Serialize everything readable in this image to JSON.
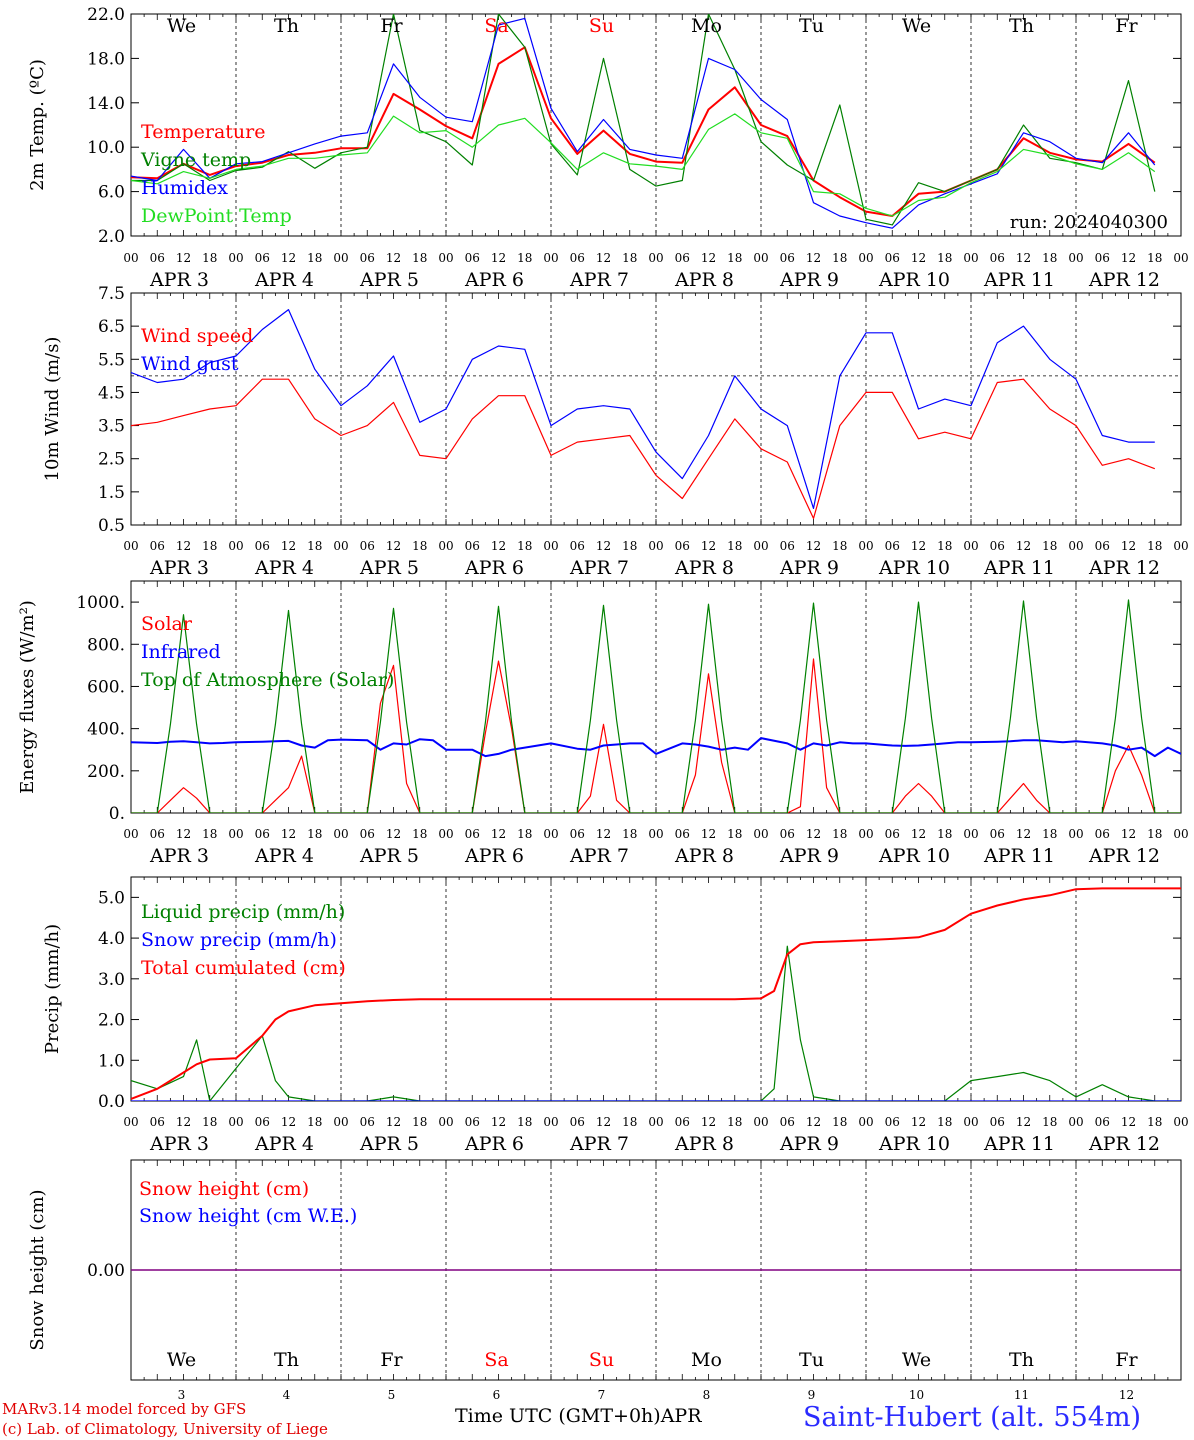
{
  "colors": {
    "red": "#ff0000",
    "dark_green": "#008000",
    "blue": "#0000ff",
    "light_green": "#22dd22",
    "purple": "#800080",
    "weekend": "#ff0000",
    "station": "#2b2bff"
  },
  "time_axis": {
    "tick_hours": [
      "00",
      "06",
      "12",
      "18"
    ],
    "dates": [
      "APR  3",
      "APR  4",
      "APR  5",
      "APR  6",
      "APR  7",
      "APR  8",
      "APR  9",
      "APR 10",
      "APR 11",
      "APR 12"
    ],
    "weekdays": [
      "We",
      "Th",
      "Fr",
      "Sa",
      "Su",
      "Mo",
      "Tu",
      "We",
      "Th",
      "Fr"
    ],
    "weekend_index": [
      3,
      4
    ],
    "day_numbers": [
      "3",
      "4",
      "5",
      "6",
      "7",
      "8",
      "9",
      "10",
      "11",
      "12"
    ],
    "xlabel": "Time UTC (GMT+0h)",
    "month": "APR"
  },
  "footer": {
    "credit1": "MARv3.14 model forced by GFS",
    "credit2": "(c) Lab. of Climatology, University of Liege",
    "station": "Saint-Hubert (alt. 554m)"
  },
  "chart_data": [
    {
      "type": "line",
      "ylabel": "2m Temp. (ºC)",
      "ylim": [
        2.0,
        22.0
      ],
      "yticks": [
        "2.0",
        "6.0",
        "10.0",
        "14.0",
        "18.0",
        "22.0"
      ],
      "annotation": "run: 2024040300",
      "x_hours": [
        0,
        6,
        12,
        18,
        24,
        30,
        36,
        42,
        48,
        54,
        60,
        66,
        72,
        78,
        84,
        90,
        96,
        102,
        108,
        114,
        120,
        126,
        132,
        138,
        144,
        150,
        156,
        162,
        168,
        174,
        180,
        186,
        192,
        198,
        204,
        210,
        216,
        222,
        228,
        234
      ],
      "series": [
        {
          "name": "Temperature",
          "color": "#ff0000",
          "values": [
            7.3,
            7.2,
            8.5,
            7.5,
            8.3,
            8.6,
            9.3,
            9.5,
            9.9,
            9.9,
            14.8,
            13.4,
            11.9,
            10.8,
            17.5,
            19.0,
            12.6,
            9.4,
            11.5,
            9.4,
            8.7,
            8.6,
            13.4,
            15.4,
            12.0,
            11.0,
            7.0,
            5.5,
            4.2,
            3.8,
            5.8,
            6.0,
            7.0,
            8.0,
            10.8,
            9.5,
            8.9,
            8.7,
            10.3,
            8.6
          ]
        },
        {
          "name": "Vigne temp",
          "color": "#008000",
          "values": [
            7.0,
            7.0,
            8.5,
            7.0,
            7.9,
            8.2,
            9.6,
            8.1,
            9.5,
            10.0,
            22.0,
            11.5,
            10.5,
            8.4,
            22.0,
            19.0,
            10.3,
            7.5,
            18.0,
            8.0,
            6.5,
            7.0,
            22.0,
            17.0,
            10.5,
            8.4,
            7.0,
            13.8,
            3.5,
            3.0,
            6.8,
            6.0,
            7.0,
            8.0,
            12.0,
            9.0,
            8.6,
            8.0,
            16.0,
            6.0
          ]
        },
        {
          "name": "Humidex",
          "color": "#0000ff",
          "values": [
            7.4,
            7.0,
            9.8,
            7.2,
            8.5,
            8.7,
            9.5,
            10.3,
            11.0,
            11.3,
            17.5,
            14.5,
            12.7,
            12.3,
            21.0,
            21.6,
            13.5,
            9.6,
            12.5,
            9.8,
            9.3,
            9.0,
            18.0,
            17.0,
            14.3,
            12.5,
            5.0,
            3.8,
            3.2,
            2.7,
            4.8,
            5.8,
            6.7,
            7.6,
            11.3,
            10.5,
            9.0,
            8.6,
            11.3,
            8.4
          ]
        },
        {
          "name": "DewPoint Temp",
          "color": "#22dd22",
          "values": [
            7.0,
            6.7,
            7.8,
            7.2,
            8.0,
            8.3,
            9.0,
            9.0,
            9.3,
            9.5,
            12.8,
            11.3,
            11.5,
            10.0,
            12.0,
            12.6,
            10.4,
            8.0,
            9.5,
            8.5,
            8.3,
            8.0,
            11.6,
            13.0,
            11.3,
            10.8,
            6.0,
            5.8,
            4.5,
            3.8,
            5.2,
            5.5,
            6.8,
            7.8,
            9.8,
            9.3,
            8.5,
            8.0,
            9.5,
            7.8
          ]
        }
      ]
    },
    {
      "type": "line",
      "ylabel": "10m Wind (m/s)",
      "ylim": [
        0.5,
        7.5
      ],
      "yticks": [
        "0.5",
        "1.5",
        "2.5",
        "3.5",
        "4.5",
        "5.5",
        "6.5",
        "7.5"
      ],
      "reference_line": 5.0,
      "x_hours": [
        0,
        6,
        12,
        18,
        24,
        30,
        36,
        42,
        48,
        54,
        60,
        66,
        72,
        78,
        84,
        90,
        96,
        102,
        108,
        114,
        120,
        126,
        132,
        138,
        144,
        150,
        156,
        162,
        168,
        174,
        180,
        186,
        192,
        198,
        204,
        210,
        216,
        222,
        228,
        234
      ],
      "series": [
        {
          "name": "Wind speed",
          "color": "#ff0000",
          "values": [
            3.5,
            3.6,
            3.8,
            4.0,
            4.1,
            4.9,
            4.9,
            3.7,
            3.2,
            3.5,
            4.2,
            2.6,
            2.5,
            3.7,
            4.4,
            4.4,
            2.6,
            3.0,
            3.1,
            3.2,
            2.0,
            1.3,
            2.5,
            3.7,
            2.8,
            2.4,
            0.7,
            3.5,
            4.5,
            4.5,
            3.1,
            3.3,
            3.1,
            4.8,
            4.9,
            4.0,
            3.5,
            2.3,
            2.5,
            2.2
          ]
        },
        {
          "name": "Wind gust",
          "color": "#0000ff",
          "values": [
            5.1,
            4.8,
            4.9,
            5.4,
            5.6,
            6.4,
            7.0,
            5.2,
            4.1,
            4.7,
            5.6,
            3.6,
            4.0,
            5.5,
            5.9,
            5.8,
            3.5,
            4.0,
            4.1,
            4.0,
            2.7,
            1.9,
            3.2,
            5.0,
            4.0,
            3.5,
            1.0,
            5.0,
            6.3,
            6.3,
            4.0,
            4.3,
            4.1,
            6.0,
            6.5,
            5.5,
            4.9,
            3.2,
            3.0,
            3.0
          ]
        }
      ]
    },
    {
      "type": "line",
      "ylabel": "Energy fluxes (W/m²)",
      "ylim": [
        0,
        1100
      ],
      "yticks": [
        "0.",
        "200.",
        "400.",
        "600.",
        "800.",
        "1000."
      ],
      "x_hours": [
        0,
        6,
        9,
        12,
        15,
        18,
        21,
        24,
        30,
        33,
        36,
        39,
        42,
        45,
        48,
        54,
        57,
        60,
        63,
        66,
        69,
        72,
        78,
        81,
        84,
        87,
        90,
        93,
        96,
        102,
        105,
        108,
        111,
        114,
        117,
        120,
        126,
        129,
        132,
        135,
        138,
        141,
        144,
        150,
        153,
        156,
        159,
        162,
        165,
        168,
        174,
        177,
        180,
        183,
        186,
        189,
        192,
        198,
        201,
        204,
        207,
        210,
        213,
        216,
        222,
        225,
        228,
        231,
        234,
        237,
        240
      ],
      "series": [
        {
          "name": "Solar",
          "color": "#ff0000",
          "values": [
            0,
            0,
            60,
            120,
            70,
            0,
            0,
            0,
            0,
            60,
            120,
            270,
            0,
            0,
            0,
            0,
            520,
            700,
            140,
            0,
            0,
            0,
            0,
            380,
            720,
            400,
            0,
            0,
            0,
            0,
            80,
            420,
            60,
            0,
            0,
            0,
            0,
            180,
            660,
            240,
            0,
            0,
            0,
            0,
            30,
            730,
            120,
            0,
            0,
            0,
            0,
            80,
            140,
            80,
            0,
            0,
            0,
            0,
            70,
            140,
            60,
            0,
            0,
            0,
            0,
            200,
            320,
            180,
            0,
            0,
            0
          ]
        },
        {
          "name": "Infrared",
          "color": "#0000ff",
          "values": [
            335,
            332,
            338,
            340,
            335,
            330,
            332,
            335,
            338,
            340,
            342,
            320,
            310,
            345,
            348,
            345,
            300,
            330,
            325,
            350,
            345,
            300,
            300,
            270,
            280,
            300,
            310,
            320,
            330,
            305,
            300,
            320,
            325,
            330,
            330,
            280,
            330,
            325,
            315,
            300,
            310,
            300,
            355,
            330,
            300,
            330,
            320,
            335,
            330,
            330,
            320,
            318,
            320,
            325,
            330,
            335,
            335,
            338,
            340,
            345,
            345,
            340,
            335,
            340,
            330,
            320,
            300,
            310,
            270,
            310,
            280
          ]
        },
        {
          "name": "Top of Atmosphere (Solar)",
          "color": "#008000",
          "values": [
            0,
            0,
            420,
            940,
            420,
            0,
            0,
            0,
            0,
            420,
            960,
            420,
            0,
            0,
            0,
            0,
            430,
            970,
            430,
            0,
            0,
            0,
            0,
            430,
            980,
            430,
            0,
            0,
            0,
            0,
            440,
            985,
            440,
            0,
            0,
            0,
            0,
            440,
            990,
            440,
            0,
            0,
            0,
            0,
            440,
            995,
            440,
            0,
            0,
            0,
            0,
            450,
            1000,
            450,
            0,
            0,
            0,
            0,
            450,
            1005,
            450,
            0,
            0,
            0,
            0,
            450,
            1010,
            450,
            0,
            0,
            0
          ]
        }
      ]
    },
    {
      "type": "line",
      "ylabel": "Precip (mm/h)",
      "ylim": [
        0,
        5.5
      ],
      "yticks": [
        "0.0",
        "1.0",
        "2.0",
        "3.0",
        "4.0",
        "5.0"
      ],
      "x_hours": [
        0,
        6,
        12,
        15,
        18,
        24,
        30,
        33,
        36,
        42,
        48,
        54,
        60,
        66,
        72,
        78,
        84,
        90,
        96,
        102,
        108,
        114,
        120,
        126,
        132,
        138,
        144,
        147,
        150,
        153,
        156,
        162,
        168,
        174,
        180,
        186,
        192,
        198,
        204,
        210,
        216,
        222,
        228,
        234,
        240
      ],
      "series": [
        {
          "name": "Liquid precip (mm/h)",
          "color": "#008000",
          "values": [
            0.5,
            0.3,
            0.6,
            1.5,
            0.0,
            0.8,
            1.6,
            0.5,
            0.1,
            0.0,
            0.0,
            0.0,
            0.1,
            0.0,
            0.0,
            0.0,
            0.0,
            0.0,
            0.0,
            0.0,
            0.0,
            0.0,
            0.0,
            0.0,
            0.0,
            0.0,
            0.0,
            0.3,
            3.8,
            1.5,
            0.1,
            0.0,
            0.0,
            0.0,
            0.0,
            0.0,
            0.5,
            0.6,
            0.7,
            0.5,
            0.1,
            0.4,
            0.1,
            0.0,
            0.0
          ]
        },
        {
          "name": "Snow precip (mm/h)",
          "color": "#0000ff",
          "values": [
            0,
            0,
            0,
            0,
            0,
            0,
            0,
            0,
            0,
            0,
            0,
            0,
            0,
            0,
            0,
            0,
            0,
            0,
            0,
            0,
            0,
            0,
            0,
            0,
            0,
            0,
            0,
            0,
            0,
            0,
            0,
            0,
            0,
            0,
            0,
            0,
            0,
            0,
            0,
            0,
            0,
            0,
            0,
            0,
            0
          ]
        },
        {
          "name": "Total cumulated (cm)",
          "color": "#ff0000",
          "values": [
            0.05,
            0.3,
            0.7,
            0.9,
            1.02,
            1.05,
            1.6,
            2.0,
            2.2,
            2.35,
            2.4,
            2.45,
            2.48,
            2.5,
            2.5,
            2.5,
            2.5,
            2.5,
            2.5,
            2.5,
            2.5,
            2.5,
            2.5,
            2.5,
            2.5,
            2.5,
            2.52,
            2.7,
            3.6,
            3.85,
            3.9,
            3.92,
            3.95,
            3.98,
            4.02,
            4.2,
            4.6,
            4.8,
            4.95,
            5.05,
            5.2,
            5.22,
            5.22,
            5.22,
            5.22
          ]
        }
      ]
    },
    {
      "type": "line",
      "ylabel": "Snow height (cm)",
      "ytick": "0.00",
      "x_hours": [
        0,
        240
      ],
      "series": [
        {
          "name": "Snow height (cm)",
          "color": "#ff0000",
          "values": [
            0,
            0
          ]
        },
        {
          "name": "Snow height (cm W.E.)",
          "color": "#0000ff",
          "values": [
            0,
            0
          ]
        }
      ],
      "zero_line_color": "#800080"
    }
  ]
}
